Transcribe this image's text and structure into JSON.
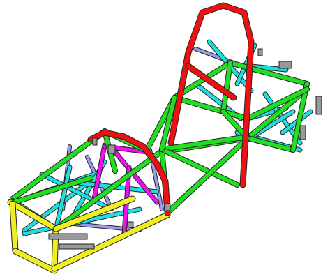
{
  "colors": {
    "background": "#ffffff",
    "main_rails": "#22dd22",
    "roll_hoops": "#ee1111",
    "braces": "#22dddd",
    "cockpit_braces": "#ee11ee",
    "front_bulkhead": "#eeee22",
    "diagonals": "#9999ee",
    "node_plates": "#999999",
    "outline": "#222222"
  },
  "icons": {
    "tab": "tab-bracket-icon",
    "pedal": "pedal-tray-icon"
  }
}
